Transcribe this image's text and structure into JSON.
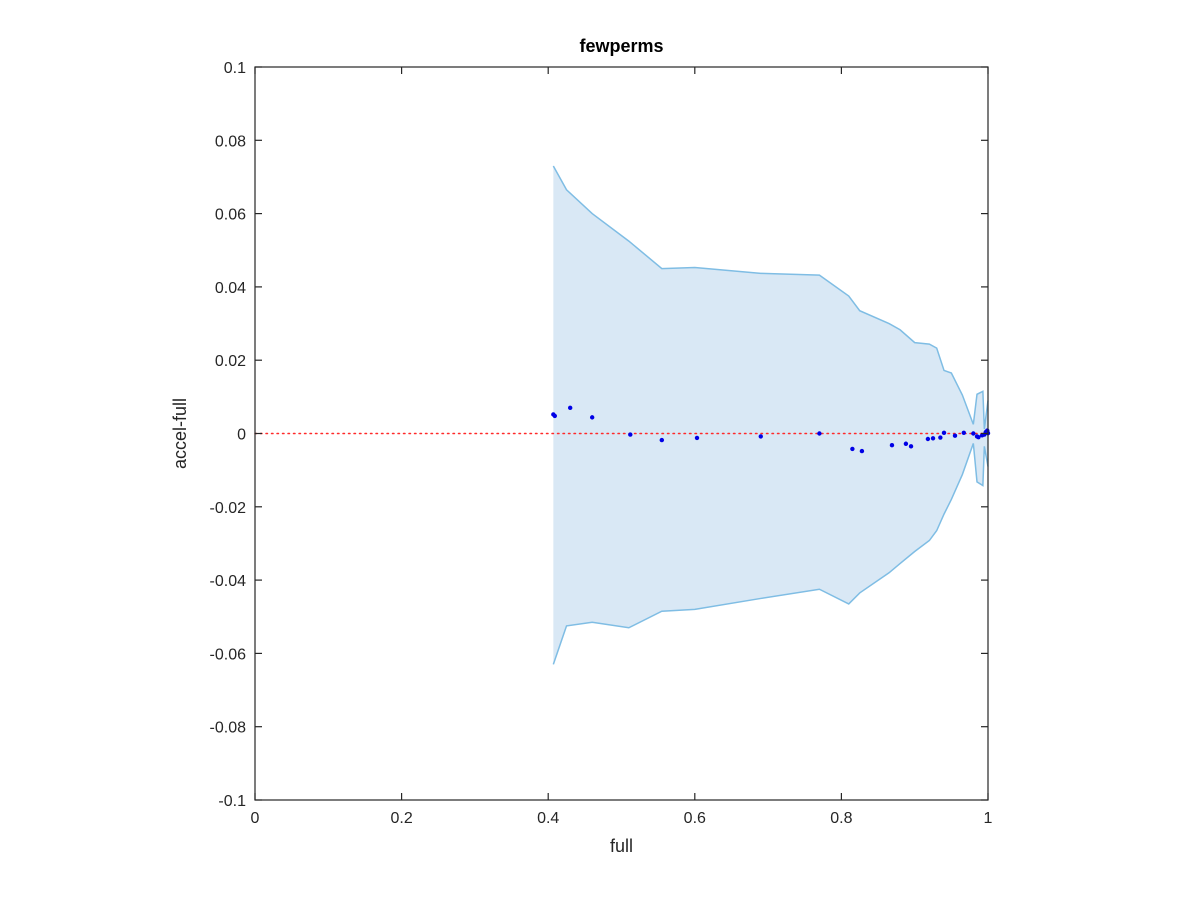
{
  "chart_data": {
    "type": "area",
    "title": "fewperms",
    "xlabel": "full",
    "ylabel": "accel-full",
    "xlim": [
      0,
      1
    ],
    "ylim": [
      -0.1,
      0.1
    ],
    "xticks": [
      0,
      0.2,
      0.4,
      0.6,
      0.8,
      1
    ],
    "xtick_labels": [
      "0",
      "0.2",
      "0.4",
      "0.6",
      "0.8",
      "1"
    ],
    "yticks": [
      -0.1,
      -0.08,
      -0.06,
      -0.04,
      -0.02,
      0,
      0.02,
      0.04,
      0.06,
      0.08,
      0.1
    ],
    "ytick_labels": [
      "-0.1",
      "-0.08",
      "-0.06",
      "-0.04",
      "-0.02",
      "0",
      "0.02",
      "0.04",
      "0.06",
      "0.08",
      "0.1"
    ],
    "grid": false,
    "band": {
      "x": [
        0.407,
        0.425,
        0.46,
        0.51,
        0.555,
        0.6,
        0.69,
        0.77,
        0.81,
        0.825,
        0.865,
        0.88,
        0.9,
        0.92,
        0.93,
        0.94,
        0.95,
        0.965,
        0.98,
        0.985,
        0.993,
        0.995,
        1.0
      ],
      "upper": [
        0.073,
        0.0665,
        0.06,
        0.0525,
        0.045,
        0.0453,
        0.0437,
        0.0432,
        0.0375,
        0.0335,
        0.03,
        0.0283,
        0.0248,
        0.0244,
        0.0233,
        0.0172,
        0.0165,
        0.0105,
        0.0025,
        0.0107,
        0.0115,
        0.0012,
        0.009
      ],
      "lower": [
        -0.063,
        -0.0525,
        -0.0515,
        -0.053,
        -0.0485,
        -0.048,
        -0.045,
        -0.0425,
        -0.0465,
        -0.0435,
        -0.038,
        -0.0355,
        -0.0322,
        -0.0292,
        -0.0265,
        -0.022,
        -0.018,
        -0.0112,
        -0.0027,
        -0.0132,
        -0.0142,
        -0.0035,
        -0.009
      ],
      "fill": "#d9e8f5",
      "stroke": "#7fbde4"
    },
    "points": {
      "x": [
        0.407,
        0.409,
        0.43,
        0.46,
        0.512,
        0.555,
        0.603,
        0.69,
        0.77,
        0.815,
        0.828,
        0.869,
        0.888,
        0.895,
        0.918,
        0.925,
        0.935,
        0.94,
        0.955,
        0.967,
        0.98,
        0.985,
        0.987,
        0.992,
        0.995,
        0.997,
        0.999,
        1.0
      ],
      "y": [
        0.0052,
        0.0048,
        0.007,
        0.0044,
        -0.0003,
        -0.0018,
        -0.0012,
        -0.0008,
        0.0,
        -0.0042,
        -0.0048,
        -0.0032,
        -0.0028,
        -0.0035,
        -0.0015,
        -0.0013,
        -0.0011,
        0.0002,
        -0.0006,
        0.0002,
        0.0,
        -0.0008,
        -0.001,
        -0.0005,
        -0.0003,
        0.0004,
        0.0008,
        0.0001
      ],
      "color": "#0000e6"
    },
    "reference_line": {
      "y": 0,
      "color": "#ff2a2a",
      "style": "dotted"
    }
  }
}
